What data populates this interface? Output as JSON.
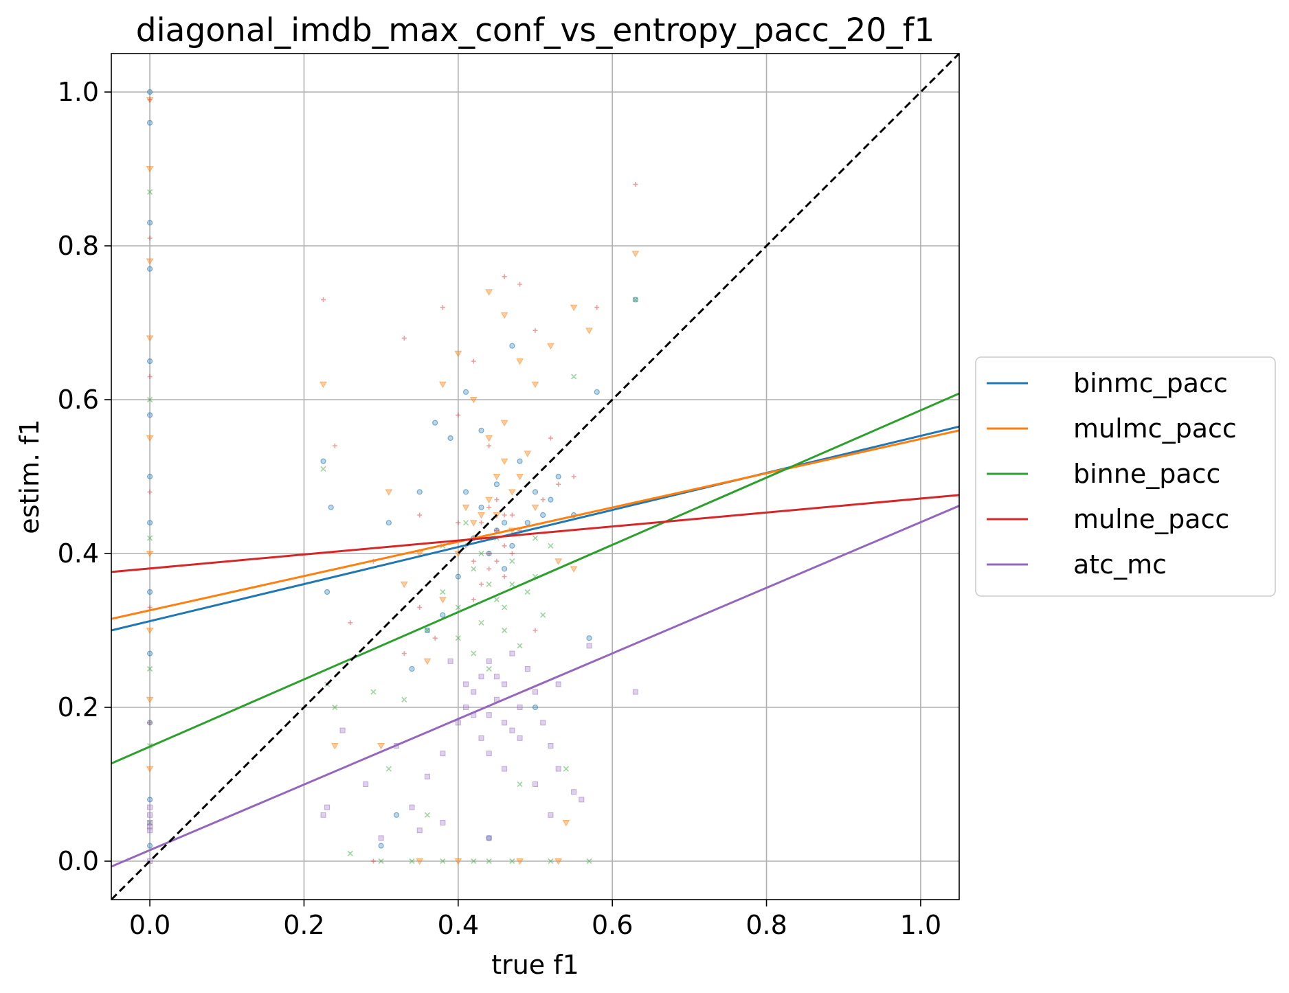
{
  "chart_data": {
    "type": "scatter",
    "title": "diagonal_imdb_max_conf_vs_entropy_pacc_20_f1",
    "xlabel": "true f1",
    "ylabel": "estim. f1",
    "xlim": [
      -0.05,
      1.05
    ],
    "ylim": [
      -0.05,
      1.05
    ],
    "grid": true,
    "legend_position": "outside-right",
    "x_ticks": [
      0.0,
      0.2,
      0.4,
      0.6,
      0.8,
      1.0
    ],
    "y_ticks": [
      0.0,
      0.2,
      0.4,
      0.6,
      0.8,
      1.0
    ],
    "x_tick_labels": [
      "0.0",
      "0.2",
      "0.4",
      "0.6",
      "0.8",
      "1.0"
    ],
    "y_tick_labels": [
      "0.0",
      "0.2",
      "0.4",
      "0.6",
      "0.8",
      "1.0"
    ],
    "diagonal": {
      "from": [
        -0.05,
        -0.05
      ],
      "to": [
        1.05,
        1.05
      ],
      "color": "#000000",
      "style": "dashed"
    },
    "series": [
      {
        "name": "binmc_pacc",
        "color": "#1f77b4",
        "marker": "circle",
        "fit_line": [
          [
            -0.05,
            0.3
          ],
          [
            1.05,
            0.565
          ]
        ],
        "points": [
          [
            0.0,
            1.0
          ],
          [
            0.0,
            0.96
          ],
          [
            0.0,
            0.83
          ],
          [
            0.0,
            0.77
          ],
          [
            0.0,
            0.65
          ],
          [
            0.0,
            0.58
          ],
          [
            0.0,
            0.5
          ],
          [
            0.0,
            0.44
          ],
          [
            0.0,
            0.35
          ],
          [
            0.0,
            0.27
          ],
          [
            0.0,
            0.18
          ],
          [
            0.0,
            0.08
          ],
          [
            0.0,
            0.02
          ],
          [
            0.225,
            0.52
          ],
          [
            0.235,
            0.46
          ],
          [
            0.23,
            0.35
          ],
          [
            0.31,
            0.44
          ],
          [
            0.35,
            0.48
          ],
          [
            0.37,
            0.57
          ],
          [
            0.39,
            0.55
          ],
          [
            0.41,
            0.61
          ],
          [
            0.43,
            0.56
          ],
          [
            0.45,
            0.49
          ],
          [
            0.46,
            0.44
          ],
          [
            0.47,
            0.67
          ],
          [
            0.48,
            0.52
          ],
          [
            0.5,
            0.48
          ],
          [
            0.51,
            0.45
          ],
          [
            0.52,
            0.47
          ],
          [
            0.53,
            0.5
          ],
          [
            0.55,
            0.45
          ],
          [
            0.57,
            0.29
          ],
          [
            0.58,
            0.61
          ],
          [
            0.63,
            0.73
          ],
          [
            0.42,
            0.42
          ],
          [
            0.44,
            0.4
          ],
          [
            0.46,
            0.38
          ],
          [
            0.4,
            0.37
          ],
          [
            0.43,
            0.46
          ],
          [
            0.45,
            0.43
          ],
          [
            0.47,
            0.41
          ],
          [
            0.49,
            0.44
          ],
          [
            0.41,
            0.48
          ],
          [
            0.36,
            0.3
          ],
          [
            0.34,
            0.25
          ],
          [
            0.38,
            0.32
          ],
          [
            0.3,
            0.02
          ],
          [
            0.32,
            0.06
          ],
          [
            0.44,
            0.03
          ],
          [
            0.5,
            0.2
          ]
        ]
      },
      {
        "name": "mulmc_pacc",
        "color": "#ff7f0e",
        "marker": "triangle-down",
        "fit_line": [
          [
            -0.05,
            0.315
          ],
          [
            1.05,
            0.56
          ]
        ],
        "points": [
          [
            0.0,
            0.99
          ],
          [
            0.0,
            0.9
          ],
          [
            0.0,
            0.78
          ],
          [
            0.0,
            0.68
          ],
          [
            0.0,
            0.55
          ],
          [
            0.0,
            0.4
          ],
          [
            0.0,
            0.3
          ],
          [
            0.0,
            0.21
          ],
          [
            0.0,
            0.12
          ],
          [
            0.225,
            0.62
          ],
          [
            0.24,
            0.15
          ],
          [
            0.31,
            0.48
          ],
          [
            0.33,
            0.36
          ],
          [
            0.35,
            0.4
          ],
          [
            0.38,
            0.62
          ],
          [
            0.4,
            0.66
          ],
          [
            0.42,
            0.6
          ],
          [
            0.44,
            0.74
          ],
          [
            0.46,
            0.71
          ],
          [
            0.48,
            0.65
          ],
          [
            0.5,
            0.62
          ],
          [
            0.52,
            0.67
          ],
          [
            0.55,
            0.72
          ],
          [
            0.57,
            0.69
          ],
          [
            0.63,
            0.79
          ],
          [
            0.44,
            0.47
          ],
          [
            0.45,
            0.5
          ],
          [
            0.46,
            0.52
          ],
          [
            0.47,
            0.48
          ],
          [
            0.43,
            0.45
          ],
          [
            0.42,
            0.44
          ],
          [
            0.41,
            0.46
          ],
          [
            0.48,
            0.5
          ],
          [
            0.49,
            0.53
          ],
          [
            0.44,
            0.55
          ],
          [
            0.46,
            0.57
          ],
          [
            0.45,
            0.45
          ],
          [
            0.47,
            0.43
          ],
          [
            0.5,
            0.46
          ],
          [
            0.4,
            0.4
          ],
          [
            0.38,
            0.34
          ],
          [
            0.53,
            0.39
          ],
          [
            0.55,
            0.38
          ],
          [
            0.35,
            0.0
          ],
          [
            0.4,
            0.0
          ],
          [
            0.48,
            0.0
          ],
          [
            0.53,
            0.0
          ],
          [
            0.54,
            0.05
          ],
          [
            0.36,
            0.26
          ],
          [
            0.3,
            0.15
          ]
        ]
      },
      {
        "name": "binne_pacc",
        "color": "#2ca02c",
        "marker": "x",
        "fit_line": [
          [
            -0.05,
            0.127
          ],
          [
            1.05,
            0.608
          ]
        ],
        "points": [
          [
            0.0,
            0.87
          ],
          [
            0.0,
            0.6
          ],
          [
            0.0,
            0.42
          ],
          [
            0.0,
            0.25
          ],
          [
            0.0,
            0.15
          ],
          [
            0.0,
            0.05
          ],
          [
            0.225,
            0.51
          ],
          [
            0.23,
            0.23
          ],
          [
            0.24,
            0.2
          ],
          [
            0.29,
            0.22
          ],
          [
            0.31,
            0.12
          ],
          [
            0.33,
            0.21
          ],
          [
            0.36,
            0.3
          ],
          [
            0.38,
            0.35
          ],
          [
            0.4,
            0.33
          ],
          [
            0.42,
            0.38
          ],
          [
            0.43,
            0.31
          ],
          [
            0.44,
            0.36
          ],
          [
            0.45,
            0.34
          ],
          [
            0.46,
            0.3
          ],
          [
            0.47,
            0.39
          ],
          [
            0.48,
            0.28
          ],
          [
            0.49,
            0.35
          ],
          [
            0.5,
            0.37
          ],
          [
            0.51,
            0.32
          ],
          [
            0.52,
            0.41
          ],
          [
            0.55,
            0.63
          ],
          [
            0.63,
            0.73
          ],
          [
            0.42,
            0.27
          ],
          [
            0.44,
            0.25
          ],
          [
            0.46,
            0.33
          ],
          [
            0.4,
            0.29
          ],
          [
            0.38,
            0.41
          ],
          [
            0.41,
            0.44
          ],
          [
            0.43,
            0.4
          ],
          [
            0.45,
            0.42
          ],
          [
            0.47,
            0.36
          ],
          [
            0.5,
            0.42
          ],
          [
            0.3,
            0.0
          ],
          [
            0.34,
            0.0
          ],
          [
            0.38,
            0.0
          ],
          [
            0.42,
            0.0
          ],
          [
            0.44,
            0.0
          ],
          [
            0.47,
            0.0
          ],
          [
            0.52,
            0.0
          ],
          [
            0.57,
            0.0
          ],
          [
            0.26,
            0.01
          ],
          [
            0.36,
            0.06
          ],
          [
            0.48,
            0.1
          ],
          [
            0.54,
            0.12
          ]
        ]
      },
      {
        "name": "mulne_pacc",
        "color": "#d62728",
        "marker": "plus",
        "fit_line": [
          [
            -0.05,
            0.376
          ],
          [
            1.05,
            0.476
          ]
        ],
        "points": [
          [
            0.0,
            0.99
          ],
          [
            0.0,
            0.81
          ],
          [
            0.0,
            0.63
          ],
          [
            0.0,
            0.48
          ],
          [
            0.0,
            0.33
          ],
          [
            0.0,
            0.18
          ],
          [
            0.225,
            0.73
          ],
          [
            0.24,
            0.54
          ],
          [
            0.26,
            0.31
          ],
          [
            0.29,
            0.39
          ],
          [
            0.33,
            0.68
          ],
          [
            0.35,
            0.45
          ],
          [
            0.38,
            0.72
          ],
          [
            0.4,
            0.58
          ],
          [
            0.42,
            0.65
          ],
          [
            0.44,
            0.54
          ],
          [
            0.46,
            0.76
          ],
          [
            0.48,
            0.75
          ],
          [
            0.5,
            0.69
          ],
          [
            0.52,
            0.55
          ],
          [
            0.55,
            0.5
          ],
          [
            0.58,
            0.72
          ],
          [
            0.63,
            0.88
          ],
          [
            0.42,
            0.42
          ],
          [
            0.43,
            0.44
          ],
          [
            0.44,
            0.4
          ],
          [
            0.45,
            0.43
          ],
          [
            0.46,
            0.41
          ],
          [
            0.47,
            0.45
          ],
          [
            0.44,
            0.38
          ],
          [
            0.43,
            0.36
          ],
          [
            0.45,
            0.47
          ],
          [
            0.42,
            0.39
          ],
          [
            0.46,
            0.37
          ],
          [
            0.41,
            0.41
          ],
          [
            0.47,
            0.4
          ],
          [
            0.44,
            0.46
          ],
          [
            0.43,
            0.42
          ],
          [
            0.45,
            0.39
          ],
          [
            0.4,
            0.44
          ],
          [
            0.48,
            0.43
          ],
          [
            0.42,
            0.34
          ],
          [
            0.46,
            0.45
          ],
          [
            0.35,
            0.33
          ],
          [
            0.37,
            0.29
          ],
          [
            0.33,
            0.27
          ],
          [
            0.53,
            0.49
          ],
          [
            0.51,
            0.47
          ],
          [
            0.5,
            0.3
          ],
          [
            0.29,
            0.0
          ]
        ]
      },
      {
        "name": "atc_mc",
        "color": "#9467bd",
        "marker": "square",
        "fit_line": [
          [
            -0.05,
            -0.007
          ],
          [
            1.05,
            0.462
          ]
        ],
        "points": [
          [
            0.0,
            0.07
          ],
          [
            0.0,
            0.06
          ],
          [
            0.0,
            0.05
          ],
          [
            0.0,
            0.045
          ],
          [
            0.0,
            0.04
          ],
          [
            0.0,
            0.0
          ],
          [
            0.225,
            0.06
          ],
          [
            0.23,
            0.07
          ],
          [
            0.25,
            0.17
          ],
          [
            0.28,
            0.1
          ],
          [
            0.3,
            0.03
          ],
          [
            0.32,
            0.15
          ],
          [
            0.34,
            0.07
          ],
          [
            0.36,
            0.11
          ],
          [
            0.38,
            0.14
          ],
          [
            0.4,
            0.18
          ],
          [
            0.41,
            0.2
          ],
          [
            0.42,
            0.22
          ],
          [
            0.43,
            0.24
          ],
          [
            0.44,
            0.19
          ],
          [
            0.45,
            0.21
          ],
          [
            0.46,
            0.23
          ],
          [
            0.47,
            0.17
          ],
          [
            0.48,
            0.2
          ],
          [
            0.49,
            0.25
          ],
          [
            0.5,
            0.22
          ],
          [
            0.51,
            0.18
          ],
          [
            0.52,
            0.15
          ],
          [
            0.53,
            0.12
          ],
          [
            0.55,
            0.09
          ],
          [
            0.57,
            0.28
          ],
          [
            0.63,
            0.22
          ],
          [
            0.44,
            0.26
          ],
          [
            0.45,
            0.24
          ],
          [
            0.46,
            0.18
          ],
          [
            0.43,
            0.16
          ],
          [
            0.42,
            0.19
          ],
          [
            0.47,
            0.27
          ],
          [
            0.48,
            0.16
          ],
          [
            0.41,
            0.23
          ],
          [
            0.44,
            0.14
          ],
          [
            0.46,
            0.12
          ],
          [
            0.5,
            0.1
          ],
          [
            0.52,
            0.06
          ],
          [
            0.38,
            0.05
          ],
          [
            0.35,
            0.04
          ],
          [
            0.44,
            0.03
          ],
          [
            0.56,
            0.08
          ],
          [
            0.39,
            0.26
          ],
          [
            0.53,
            0.23
          ]
        ]
      }
    ]
  }
}
